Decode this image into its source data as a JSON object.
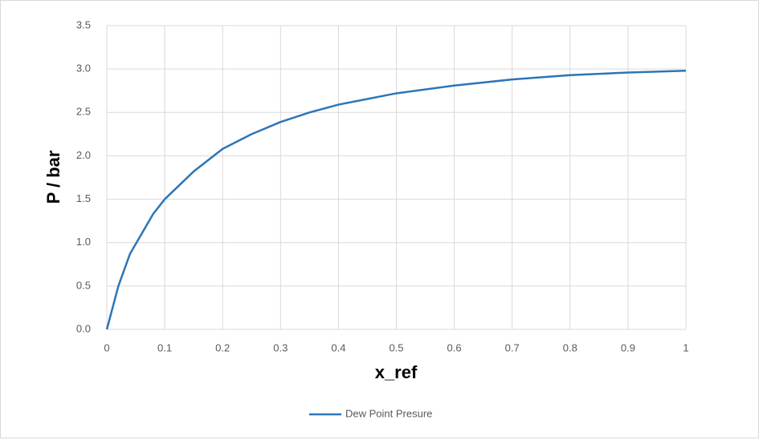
{
  "chart_data": {
    "type": "line",
    "x_label": "x_ref",
    "y_label": "P / bar",
    "x": [
      0,
      0.02,
      0.04,
      0.06,
      0.08,
      0.1,
      0.15,
      0.2,
      0.25,
      0.3,
      0.35,
      0.4,
      0.5,
      0.6,
      0.7,
      0.8,
      0.9,
      1
    ],
    "series": [
      {
        "name": "Dew Point Presure",
        "color": "#2e75b6",
        "values": [
          0,
          0.5,
          0.87,
          1.1,
          1.33,
          1.5,
          1.82,
          2.08,
          2.25,
          2.39,
          2.5,
          2.59,
          2.72,
          2.81,
          2.88,
          2.93,
          2.96,
          2.98
        ]
      }
    ],
    "xlim": [
      0,
      1
    ],
    "xticks": [
      0,
      0.1,
      0.2,
      0.3,
      0.4,
      0.5,
      0.6,
      0.7,
      0.8,
      0.9,
      1
    ],
    "ylim": [
      0,
      3.5
    ],
    "yticks": [
      {
        "value": 0,
        "label": "0.0"
      },
      0.5,
      {
        "value": 1,
        "label": "1.0"
      },
      1.5,
      {
        "value": 2,
        "label": "2.0"
      },
      2.5,
      {
        "value": 3,
        "label": "3.0"
      },
      3.5
    ],
    "grid": true,
    "legend": "bottom"
  }
}
